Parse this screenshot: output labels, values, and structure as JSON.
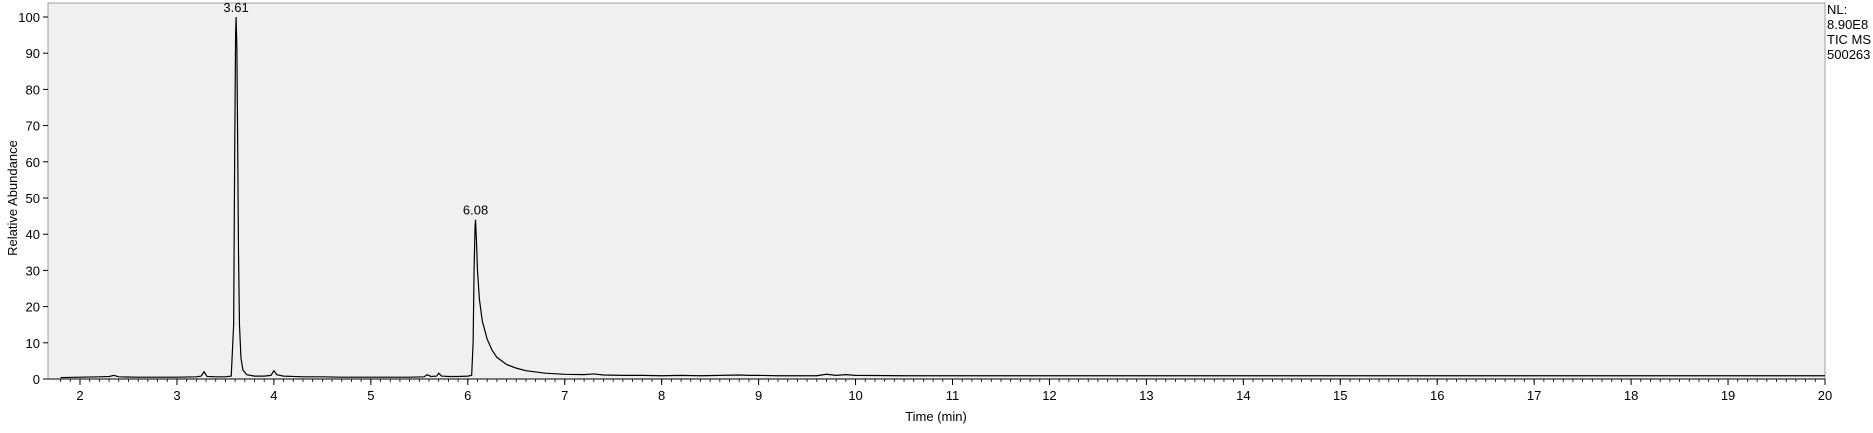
{
  "chart_data": {
    "type": "line",
    "title": "",
    "xlabel": "Time (min)",
    "ylabel": "Relative Abundance",
    "xlim": [
      1.8,
      20
    ],
    "ylim": [
      0,
      100
    ],
    "x_ticks": [
      2,
      3,
      4,
      5,
      6,
      7,
      8,
      9,
      10,
      11,
      12,
      13,
      14,
      15,
      16,
      17,
      18,
      19,
      20
    ],
    "y_ticks": [
      0,
      10,
      20,
      30,
      40,
      50,
      60,
      70,
      80,
      90,
      100
    ],
    "grid": false,
    "plot_background": "#f0f0f0",
    "line_color": "#000000",
    "peak_labels": [
      {
        "x": 3.61,
        "y": 100,
        "text": "3.61"
      },
      {
        "x": 6.08,
        "y": 44,
        "text": "6.08"
      }
    ],
    "info_text": [
      "NL:",
      "8.90E8",
      "TIC  MS",
      "500263"
    ],
    "series": [
      {
        "values_xy": [
          [
            1.8,
            0.4
          ],
          [
            2.0,
            0.5
          ],
          [
            2.2,
            0.6
          ],
          [
            2.3,
            0.7
          ],
          [
            2.35,
            1.0
          ],
          [
            2.4,
            0.6
          ],
          [
            2.6,
            0.5
          ],
          [
            2.8,
            0.5
          ],
          [
            3.0,
            0.5
          ],
          [
            3.2,
            0.6
          ],
          [
            3.25,
            0.8
          ],
          [
            3.28,
            2.0
          ],
          [
            3.31,
            0.7
          ],
          [
            3.4,
            0.6
          ],
          [
            3.5,
            0.6
          ],
          [
            3.56,
            0.8
          ],
          [
            3.585,
            15
          ],
          [
            3.595,
            60
          ],
          [
            3.605,
            95
          ],
          [
            3.61,
            100
          ],
          [
            3.618,
            92
          ],
          [
            3.625,
            70
          ],
          [
            3.635,
            35
          ],
          [
            3.645,
            15
          ],
          [
            3.66,
            6
          ],
          [
            3.68,
            2.5
          ],
          [
            3.72,
            1.2
          ],
          [
            3.8,
            0.8
          ],
          [
            3.9,
            0.8
          ],
          [
            3.97,
            1.0
          ],
          [
            4.0,
            2.3
          ],
          [
            4.03,
            1.2
          ],
          [
            4.1,
            0.8
          ],
          [
            4.3,
            0.6
          ],
          [
            4.5,
            0.6
          ],
          [
            4.7,
            0.5
          ],
          [
            4.9,
            0.5
          ],
          [
            5.0,
            0.5
          ],
          [
            5.2,
            0.5
          ],
          [
            5.4,
            0.5
          ],
          [
            5.55,
            0.6
          ],
          [
            5.58,
            1.2
          ],
          [
            5.62,
            0.7
          ],
          [
            5.68,
            0.8
          ],
          [
            5.7,
            1.6
          ],
          [
            5.73,
            0.8
          ],
          [
            5.8,
            0.7
          ],
          [
            5.9,
            0.7
          ],
          [
            6.0,
            0.8
          ],
          [
            6.04,
            1.0
          ],
          [
            6.055,
            10
          ],
          [
            6.065,
            30
          ],
          [
            6.075,
            42
          ],
          [
            6.08,
            44
          ],
          [
            6.09,
            38
          ],
          [
            6.1,
            30
          ],
          [
            6.12,
            22
          ],
          [
            6.15,
            16
          ],
          [
            6.2,
            11
          ],
          [
            6.25,
            8
          ],
          [
            6.3,
            6
          ],
          [
            6.4,
            4
          ],
          [
            6.5,
            3
          ],
          [
            6.6,
            2.3
          ],
          [
            6.8,
            1.6
          ],
          [
            7.0,
            1.3
          ],
          [
            7.2,
            1.2
          ],
          [
            7.3,
            1.4
          ],
          [
            7.4,
            1.1
          ],
          [
            7.6,
            1.0
          ],
          [
            7.8,
            1.0
          ],
          [
            8.0,
            0.9
          ],
          [
            8.2,
            1.0
          ],
          [
            8.4,
            0.9
          ],
          [
            8.6,
            1.0
          ],
          [
            8.8,
            1.1
          ],
          [
            8.9,
            1.0
          ],
          [
            9.0,
            1.0
          ],
          [
            9.2,
            0.9
          ],
          [
            9.4,
            0.9
          ],
          [
            9.6,
            0.9
          ],
          [
            9.7,
            1.3
          ],
          [
            9.8,
            1.0
          ],
          [
            9.9,
            1.2
          ],
          [
            10.0,
            1.0
          ],
          [
            10.5,
            0.9
          ],
          [
            11.0,
            0.9
          ],
          [
            11.5,
            0.9
          ],
          [
            12.0,
            0.9
          ],
          [
            12.5,
            0.9
          ],
          [
            13.0,
            0.9
          ],
          [
            13.5,
            0.9
          ],
          [
            14.0,
            0.9
          ],
          [
            14.5,
            0.9
          ],
          [
            15.0,
            0.9
          ],
          [
            15.5,
            0.9
          ],
          [
            16.0,
            0.9
          ],
          [
            16.5,
            0.9
          ],
          [
            17.0,
            0.9
          ],
          [
            17.5,
            0.9
          ],
          [
            18.0,
            0.9
          ],
          [
            18.5,
            0.9
          ],
          [
            19.0,
            0.9
          ],
          [
            19.5,
            0.9
          ],
          [
            20.0,
            0.9
          ]
        ]
      }
    ]
  }
}
